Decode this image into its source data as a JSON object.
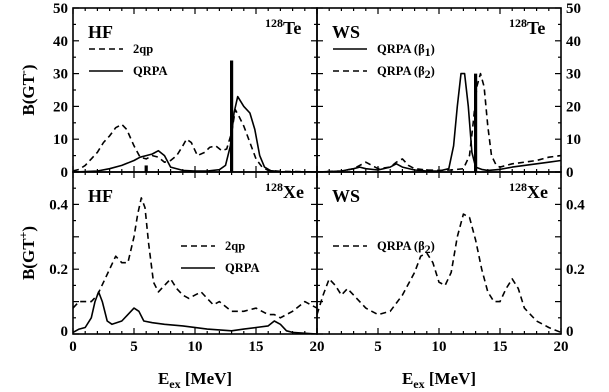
{
  "chart_data": [
    {
      "type": "line",
      "panel": "top-left",
      "label": "HF",
      "nucleus": {
        "mass": "128",
        "symbol": "Te"
      },
      "ylabel": {
        "main": "B(GT",
        "sup": "-",
        "close": ")"
      },
      "xlim": [
        0,
        20
      ],
      "ylim": [
        0,
        50
      ],
      "yticks": [
        "0",
        "10",
        "20",
        "30",
        "40",
        "50"
      ],
      "legend": [
        "2qp",
        "QRPA"
      ],
      "series": [
        {
          "name": "2qp",
          "dash": "dashed",
          "points": [
            [
              0,
              0.3
            ],
            [
              0.5,
              0.8
            ],
            [
              1,
              2
            ],
            [
              1.5,
              4
            ],
            [
              2,
              6
            ],
            [
              2.5,
              9
            ],
            [
              3,
              11
            ],
            [
              3.5,
              13.5
            ],
            [
              4,
              14.5
            ],
            [
              4.4,
              13
            ],
            [
              5,
              8
            ],
            [
              5.5,
              4.5
            ],
            [
              6,
              4
            ],
            [
              6.5,
              5
            ],
            [
              7,
              4.5
            ],
            [
              7.5,
              3
            ],
            [
              8,
              3.5
            ],
            [
              8.5,
              5
            ],
            [
              9,
              8
            ],
            [
              9.3,
              10
            ],
            [
              9.7,
              9
            ],
            [
              10.2,
              5
            ],
            [
              10.8,
              6
            ],
            [
              11.2,
              7.5
            ],
            [
              11.7,
              8
            ],
            [
              12.2,
              6.5
            ],
            [
              12.6,
              7
            ],
            [
              13,
              12
            ],
            [
              13.3,
              19
            ],
            [
              13.6,
              17
            ],
            [
              14,
              14
            ],
            [
              14.5,
              9
            ],
            [
              15,
              4
            ],
            [
              15.5,
              1.5
            ],
            [
              16,
              0.5
            ],
            [
              17,
              0.2
            ],
            [
              20,
              0
            ]
          ]
        },
        {
          "name": "QRPA",
          "dash": "solid",
          "points": [
            [
              0,
              0
            ],
            [
              2,
              0.3
            ],
            [
              3,
              1
            ],
            [
              4,
              2
            ],
            [
              5,
              3.5
            ],
            [
              5.5,
              4.5
            ],
            [
              6,
              5
            ],
            [
              6.5,
              5.5
            ],
            [
              7,
              6.5
            ],
            [
              7.5,
              5
            ],
            [
              8,
              1.5
            ],
            [
              9,
              0.5
            ],
            [
              10,
              0.3
            ],
            [
              11,
              0.3
            ],
            [
              12,
              0.7
            ],
            [
              12.5,
              2
            ],
            [
              12.9,
              8
            ],
            [
              13.2,
              18
            ],
            [
              13.5,
              23
            ],
            [
              14,
              20
            ],
            [
              14.5,
              18
            ],
            [
              14.9,
              13
            ],
            [
              15.3,
              5
            ],
            [
              15.7,
              1.5
            ],
            [
              16.2,
              0.4
            ],
            [
              17,
              0.1
            ],
            [
              20,
              0
            ]
          ]
        }
      ],
      "bars": [
        {
          "x": 13.0,
          "y": 34
        },
        {
          "x": 6.0,
          "y": 2
        }
      ]
    },
    {
      "type": "line",
      "panel": "top-right",
      "label": "WS",
      "nucleus": {
        "mass": "128",
        "symbol": "Te"
      },
      "xlim": [
        0,
        20
      ],
      "ylim": [
        0,
        50
      ],
      "yticks": [
        "0",
        "10",
        "20",
        "30",
        "40",
        "50"
      ],
      "legend": [
        {
          "main": "QRPA (β",
          "sub": "1",
          "close": ")"
        },
        {
          "main": "QRPA (β",
          "sub": "2",
          "close": ")"
        }
      ],
      "series": [
        {
          "name": "QRPA (β1)",
          "dash": "solid",
          "points": [
            [
              0,
              0
            ],
            [
              2,
              0.3
            ],
            [
              3,
              1
            ],
            [
              3.5,
              1.5
            ],
            [
              4,
              1
            ],
            [
              5,
              0.6
            ],
            [
              6,
              1.5
            ],
            [
              6.5,
              2.5
            ],
            [
              7,
              1.5
            ],
            [
              8,
              0.6
            ],
            [
              9,
              0.3
            ],
            [
              10,
              0.3
            ],
            [
              10.8,
              1
            ],
            [
              11.2,
              8
            ],
            [
              11.5,
              20
            ],
            [
              11.8,
              30
            ],
            [
              12.1,
              30
            ],
            [
              12.4,
              20
            ],
            [
              12.7,
              6
            ],
            [
              13,
              1.5
            ],
            [
              13.5,
              0.8
            ],
            [
              14,
              0.5
            ],
            [
              15,
              0.8
            ],
            [
              16,
              1.5
            ],
            [
              17,
              2
            ],
            [
              18,
              2.5
            ],
            [
              19,
              3
            ],
            [
              20,
              3.5
            ]
          ]
        },
        {
          "name": "QRPA (β2)",
          "dash": "dashed",
          "points": [
            [
              0,
              0
            ],
            [
              2,
              0.3
            ],
            [
              3,
              1
            ],
            [
              3.5,
              2
            ],
            [
              4,
              3
            ],
            [
              4.5,
              2
            ],
            [
              5,
              1
            ],
            [
              6,
              1.5
            ],
            [
              6.5,
              3
            ],
            [
              7,
              4
            ],
            [
              7.5,
              2
            ],
            [
              8,
              1
            ],
            [
              9,
              0.6
            ],
            [
              10,
              0.5
            ],
            [
              11,
              0.6
            ],
            [
              12,
              1
            ],
            [
              12.5,
              5
            ],
            [
              12.8,
              15
            ],
            [
              13.1,
              26
            ],
            [
              13.4,
              30
            ],
            [
              13.7,
              26
            ],
            [
              14,
              14
            ],
            [
              14.3,
              5
            ],
            [
              14.7,
              2
            ],
            [
              15,
              1.5
            ],
            [
              16,
              2.5
            ],
            [
              17,
              3
            ],
            [
              18,
              3.5
            ],
            [
              19,
              4.5
            ],
            [
              20,
              5
            ]
          ]
        }
      ],
      "bars": [
        {
          "x": 13.0,
          "y": 30
        }
      ]
    },
    {
      "type": "line",
      "panel": "bottom-left",
      "label": "HF",
      "nucleus": {
        "mass": "128",
        "symbol": "Xe"
      },
      "ylabel": {
        "main": "B(GT",
        "sup": "+",
        "close": ")"
      },
      "xlabel": {
        "main": "E",
        "sub": "ex",
        "close": " [MeV]"
      },
      "xlim": [
        0,
        20
      ],
      "ylim": [
        0,
        0.5
      ],
      "xticks": [
        "0",
        "5",
        "10",
        "15",
        "20"
      ],
      "yticks": [
        "0",
        "0.2",
        "0.4"
      ],
      "legend": [
        "2qp",
        "QRPA"
      ],
      "series": [
        {
          "name": "2qp",
          "dash": "dashed",
          "points": [
            [
              0,
              0.08
            ],
            [
              0.5,
              0.1
            ],
            [
              1,
              0.1
            ],
            [
              1.5,
              0.1
            ],
            [
              2,
              0.12
            ],
            [
              2.5,
              0.16
            ],
            [
              3,
              0.2
            ],
            [
              3.5,
              0.24
            ],
            [
              4,
              0.22
            ],
            [
              4.5,
              0.22
            ],
            [
              5,
              0.3
            ],
            [
              5.3,
              0.37
            ],
            [
              5.6,
              0.42
            ],
            [
              5.9,
              0.39
            ],
            [
              6.2,
              0.28
            ],
            [
              6.6,
              0.16
            ],
            [
              7,
              0.13
            ],
            [
              7.5,
              0.15
            ],
            [
              8,
              0.17
            ],
            [
              8.5,
              0.14
            ],
            [
              9,
              0.12
            ],
            [
              9.5,
              0.11
            ],
            [
              10,
              0.12
            ],
            [
              10.5,
              0.13
            ],
            [
              11,
              0.11
            ],
            [
              11.5,
              0.09
            ],
            [
              12,
              0.1
            ],
            [
              13,
              0.07
            ],
            [
              14,
              0.07
            ],
            [
              15,
              0.08
            ],
            [
              16,
              0.06
            ],
            [
              16.5,
              0.06
            ],
            [
              17,
              0.05
            ],
            [
              18,
              0.07
            ],
            [
              19,
              0.1
            ],
            [
              20,
              0.08
            ]
          ]
        },
        {
          "name": "QRPA",
          "dash": "solid",
          "points": [
            [
              0,
              0.005
            ],
            [
              0.5,
              0.015
            ],
            [
              1,
              0.02
            ],
            [
              1.5,
              0.05
            ],
            [
              1.8,
              0.1
            ],
            [
              2.1,
              0.13
            ],
            [
              2.4,
              0.1
            ],
            [
              2.8,
              0.04
            ],
            [
              3.2,
              0.03
            ],
            [
              4,
              0.04
            ],
            [
              4.5,
              0.06
            ],
            [
              5,
              0.08
            ],
            [
              5.4,
              0.07
            ],
            [
              5.8,
              0.04
            ],
            [
              6.5,
              0.035
            ],
            [
              7.5,
              0.03
            ],
            [
              9,
              0.025
            ],
            [
              11,
              0.015
            ],
            [
              13,
              0.01
            ],
            [
              14,
              0.015
            ],
            [
              15,
              0.02
            ],
            [
              16,
              0.025
            ],
            [
              16.5,
              0.04
            ],
            [
              17,
              0.03
            ],
            [
              17.5,
              0.01
            ],
            [
              18,
              0.005
            ],
            [
              20,
              0
            ]
          ]
        }
      ]
    },
    {
      "type": "line",
      "panel": "bottom-right",
      "label": "WS",
      "nucleus": {
        "mass": "128",
        "symbol": "Xe"
      },
      "xlabel": {
        "main": "E",
        "sub": "ex",
        "close": " [MeV]"
      },
      "xlim": [
        0,
        20
      ],
      "ylim": [
        0,
        0.5
      ],
      "xticks": [
        "5",
        "10",
        "15",
        "20"
      ],
      "yticks": [
        "0",
        "0.2",
        "0.4"
      ],
      "legend": [
        {
          "main": "QRPA (β",
          "sub": "2",
          "close": ")"
        }
      ],
      "series": [
        {
          "name": "QRPA (β2)",
          "dash": "dashed",
          "points": [
            [
              0,
              0.06
            ],
            [
              0.5,
              0.12
            ],
            [
              1,
              0.17
            ],
            [
              1.5,
              0.15
            ],
            [
              2,
              0.12
            ],
            [
              2.5,
              0.14
            ],
            [
              3,
              0.12
            ],
            [
              4,
              0.08
            ],
            [
              5,
              0.06
            ],
            [
              6,
              0.07
            ],
            [
              7,
              0.12
            ],
            [
              8,
              0.19
            ],
            [
              8.5,
              0.24
            ],
            [
              9,
              0.25
            ],
            [
              9.5,
              0.22
            ],
            [
              10,
              0.16
            ],
            [
              10.5,
              0.15
            ],
            [
              11,
              0.19
            ],
            [
              11.5,
              0.3
            ],
            [
              12,
              0.37
            ],
            [
              12.5,
              0.36
            ],
            [
              13,
              0.29
            ],
            [
              13.5,
              0.2
            ],
            [
              14,
              0.13
            ],
            [
              14.5,
              0.1
            ],
            [
              15,
              0.1
            ],
            [
              15.5,
              0.14
            ],
            [
              16,
              0.17
            ],
            [
              16.5,
              0.14
            ],
            [
              17,
              0.08
            ],
            [
              18,
              0.04
            ],
            [
              19,
              0.02
            ],
            [
              20,
              0.005
            ]
          ]
        }
      ]
    }
  ]
}
